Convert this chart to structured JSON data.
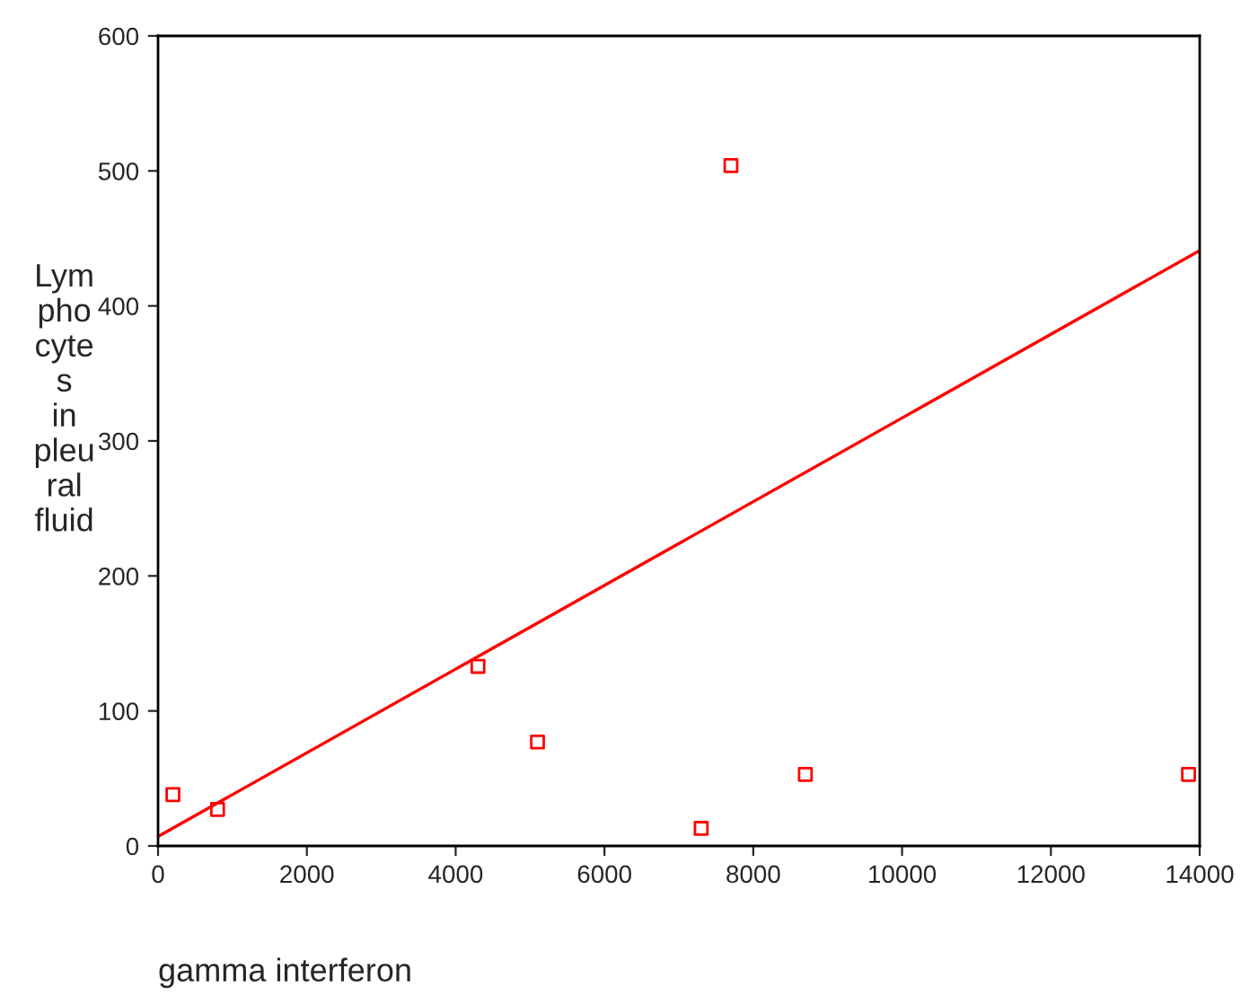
{
  "chart_data": {
    "type": "scatter",
    "xlabel": "gamma interferon",
    "ylabel": "Lym\npho\ncyte\ns\nin\npleu\nral\nfluid",
    "xlim": [
      0,
      14000
    ],
    "ylim": [
      0,
      600
    ],
    "xticks": [
      0,
      2000,
      4000,
      6000,
      8000,
      10000,
      12000,
      14000
    ],
    "yticks": [
      0,
      100,
      200,
      300,
      400,
      500,
      600
    ],
    "grid": false,
    "legend": false,
    "series": [
      {
        "marker": "square",
        "color": "#ff0000",
        "x": [
          200,
          800,
          4300,
          5100,
          7300,
          7700,
          8700,
          13850
        ],
        "values": [
          38,
          27,
          133,
          77,
          13,
          504,
          53,
          53
        ]
      },
      {
        "type": "line",
        "color": "#ff0000",
        "x": [
          0,
          14000
        ],
        "values": [
          7,
          441
        ]
      }
    ]
  }
}
